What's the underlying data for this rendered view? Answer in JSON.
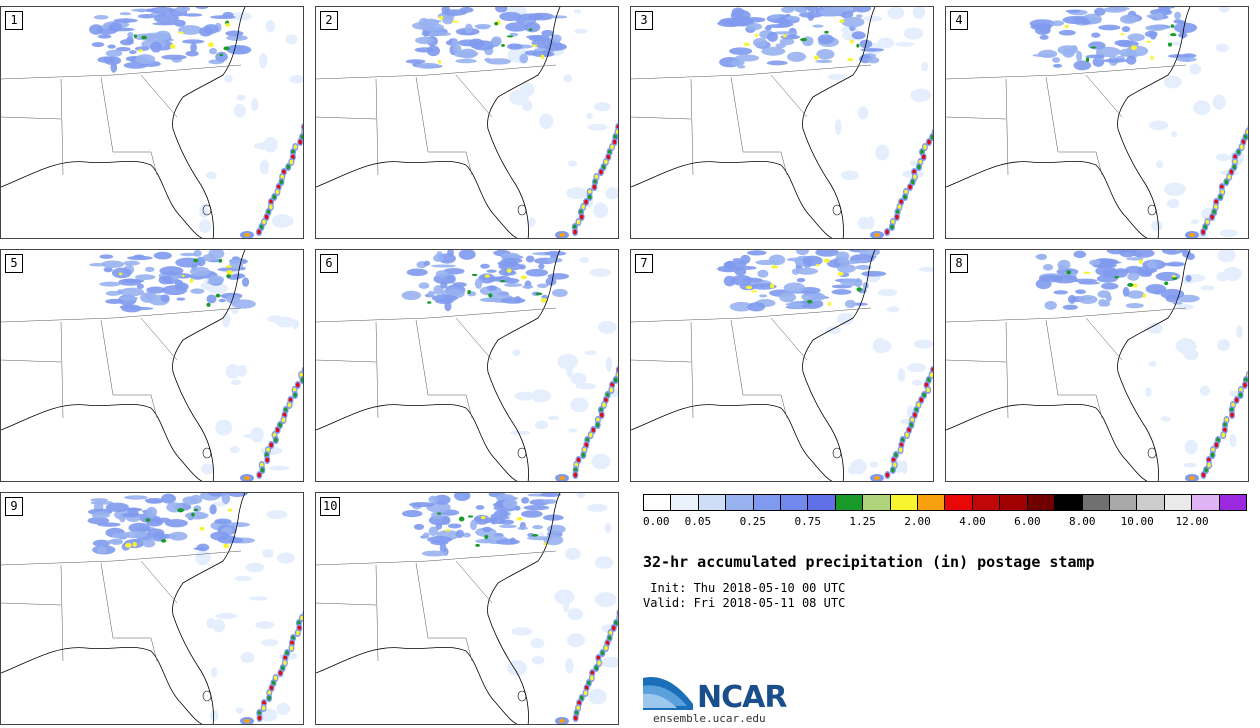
{
  "panels": [
    {
      "label": "1"
    },
    {
      "label": "2"
    },
    {
      "label": "3"
    },
    {
      "label": "4"
    },
    {
      "label": "5"
    },
    {
      "label": "6"
    },
    {
      "label": "7"
    },
    {
      "label": "8"
    },
    {
      "label": "9"
    },
    {
      "label": "10"
    }
  ],
  "colorbar": {
    "colors": [
      "#ffffff",
      "#eaf2fc",
      "#cfddf6",
      "#98b2ef",
      "#7f9aee",
      "#7188ec",
      "#6070e6",
      "#1a9a28",
      "#b0d47c",
      "#f8f430",
      "#f8a010",
      "#e80808",
      "#c00808",
      "#a00000",
      "#700000",
      "#000000",
      "#707070",
      "#a8a8a8",
      "#cccccc",
      "#eaeaea",
      "#e0b4f4",
      "#9c28e0"
    ],
    "labels": [
      "0.00",
      "0.05",
      "0.25",
      "0.75",
      "1.25",
      "2.00",
      "4.00",
      "6.00",
      "8.00",
      "10.00",
      "12.00"
    ]
  },
  "title": "32-hr accumulated precipitation (in) postage stamp",
  "init_line": " Init: Thu 2018-05-10 00 UTC",
  "valid_line": "Valid: Fri 2018-05-11 08 UTC",
  "logo_text": "NCAR",
  "site": "ensemble.ucar.edu"
}
